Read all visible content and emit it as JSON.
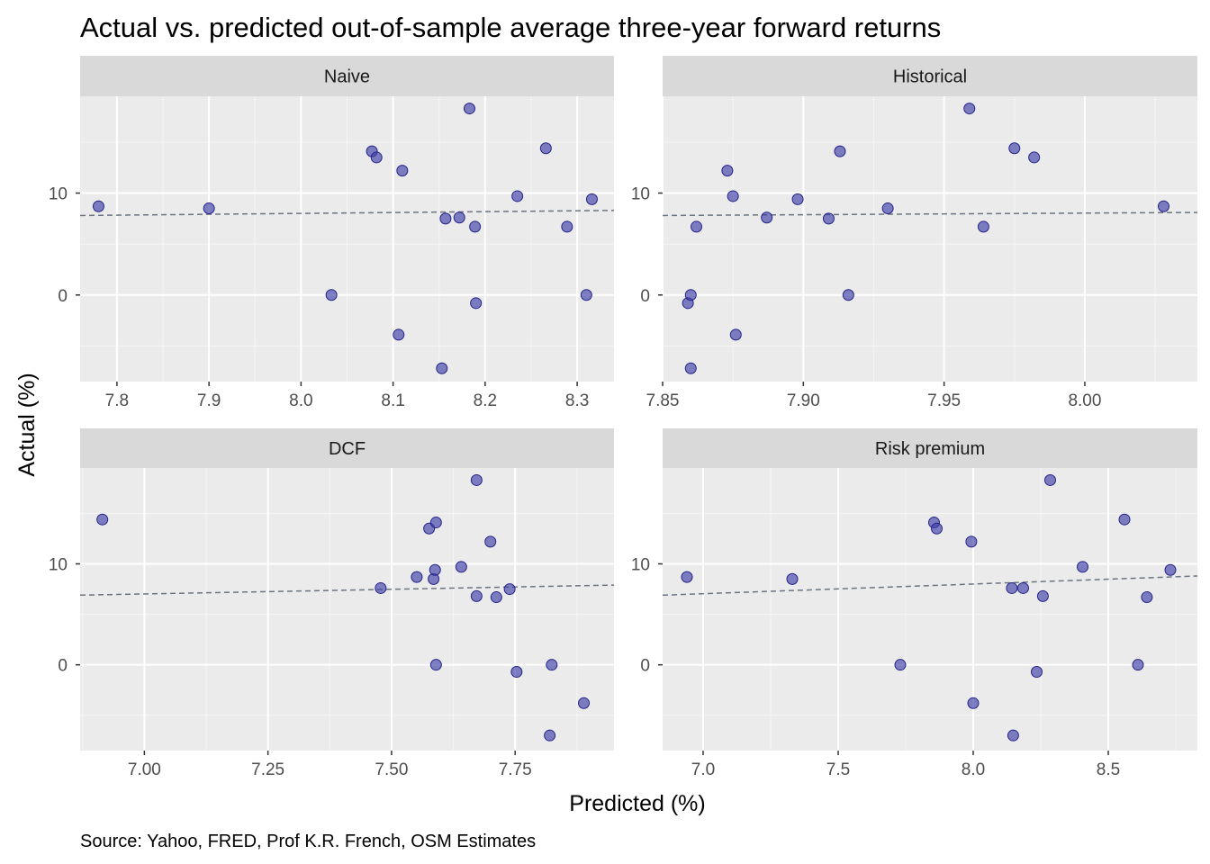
{
  "chart_data": {
    "type": "scatter",
    "title": "Actual vs. predicted out-of-sample average three-year forward returns",
    "xlabel": "Predicted (%)",
    "ylabel": "Actual (%)",
    "caption": "Source: Yahoo, FRED, Prof K.R. French, OSM Estimates",
    "grid": true,
    "point_color": "#3f3fa8",
    "trend_color": "#6b7480",
    "panels": [
      {
        "name": "Naive",
        "xlim": [
          7.76,
          8.34
        ],
        "ylim": [
          -8.5,
          19.5
        ],
        "x_ticks": [
          7.8,
          7.9,
          8.0,
          8.1,
          8.2,
          8.3
        ],
        "x_tick_labels": [
          "7.8",
          "7.9",
          "8.0",
          "8.1",
          "8.2",
          "8.3"
        ],
        "y_ticks": [
          0,
          10
        ],
        "y_tick_labels": [
          "0",
          "10"
        ],
        "trend": [
          [
            7.76,
            7.8
          ],
          [
            8.34,
            8.3
          ]
        ],
        "points": [
          {
            "x": 7.78,
            "y": 8.7
          },
          {
            "x": 7.9,
            "y": 8.5
          },
          {
            "x": 8.033,
            "y": 0.0
          },
          {
            "x": 8.077,
            "y": 14.1
          },
          {
            "x": 8.082,
            "y": 13.5
          },
          {
            "x": 8.106,
            "y": -3.9
          },
          {
            "x": 8.11,
            "y": 12.2
          },
          {
            "x": 8.153,
            "y": -7.2
          },
          {
            "x": 8.157,
            "y": 7.5
          },
          {
            "x": 8.172,
            "y": 7.6
          },
          {
            "x": 8.183,
            "y": 18.3
          },
          {
            "x": 8.189,
            "y": 6.7
          },
          {
            "x": 8.19,
            "y": -0.8
          },
          {
            "x": 8.235,
            "y": 9.7
          },
          {
            "x": 8.266,
            "y": 14.4
          },
          {
            "x": 8.289,
            "y": 6.7
          },
          {
            "x": 8.31,
            "y": 0.0
          },
          {
            "x": 8.316,
            "y": 9.4
          }
        ]
      },
      {
        "name": "Historical",
        "xlim": [
          7.85,
          8.04
        ],
        "ylim": [
          -8.5,
          19.5
        ],
        "x_ticks": [
          7.85,
          7.9,
          7.95,
          8.0
        ],
        "x_tick_labels": [
          "7.85",
          "7.90",
          "7.95",
          "8.00"
        ],
        "y_ticks": [
          0,
          10
        ],
        "y_tick_labels": [
          "0",
          "10"
        ],
        "trend": [
          [
            7.85,
            7.8
          ],
          [
            8.04,
            8.1
          ]
        ],
        "points": [
          {
            "x": 7.859,
            "y": -0.8
          },
          {
            "x": 7.86,
            "y": 0.0
          },
          {
            "x": 7.86,
            "y": -7.2
          },
          {
            "x": 7.862,
            "y": 6.7
          },
          {
            "x": 7.873,
            "y": 12.2
          },
          {
            "x": 7.875,
            "y": 9.7
          },
          {
            "x": 7.876,
            "y": -3.9
          },
          {
            "x": 7.887,
            "y": 7.6
          },
          {
            "x": 7.898,
            "y": 9.4
          },
          {
            "x": 7.909,
            "y": 7.5
          },
          {
            "x": 7.913,
            "y": 14.1
          },
          {
            "x": 7.916,
            "y": 0.0
          },
          {
            "x": 7.93,
            "y": 8.5
          },
          {
            "x": 7.959,
            "y": 18.3
          },
          {
            "x": 7.964,
            "y": 6.7
          },
          {
            "x": 7.975,
            "y": 14.4
          },
          {
            "x": 7.982,
            "y": 13.5
          },
          {
            "x": 8.028,
            "y": 8.7
          }
        ]
      },
      {
        "name": "DCF",
        "xlim": [
          6.87,
          7.95
        ],
        "ylim": [
          -8.5,
          19.5
        ],
        "x_ticks": [
          7.0,
          7.25,
          7.5,
          7.75
        ],
        "x_tick_labels": [
          "7.00",
          "7.25",
          "7.50",
          "7.75"
        ],
        "y_ticks": [
          0,
          10
        ],
        "y_tick_labels": [
          "0",
          "10"
        ],
        "trend": [
          [
            6.87,
            6.9
          ],
          [
            7.95,
            7.9
          ]
        ],
        "points": [
          {
            "x": 6.915,
            "y": 14.4
          },
          {
            "x": 7.478,
            "y": 7.6
          },
          {
            "x": 7.551,
            "y": 8.7
          },
          {
            "x": 7.576,
            "y": 13.5
          },
          {
            "x": 7.585,
            "y": 8.5
          },
          {
            "x": 7.588,
            "y": 9.4
          },
          {
            "x": 7.59,
            "y": 14.1
          },
          {
            "x": 7.59,
            "y": 0.0
          },
          {
            "x": 7.641,
            "y": 9.7
          },
          {
            "x": 7.672,
            "y": 18.3
          },
          {
            "x": 7.672,
            "y": 6.8
          },
          {
            "x": 7.7,
            "y": 12.2
          },
          {
            "x": 7.712,
            "y": 6.7
          },
          {
            "x": 7.739,
            "y": 7.5
          },
          {
            "x": 7.753,
            "y": -0.7
          },
          {
            "x": 7.82,
            "y": -7.0
          },
          {
            "x": 7.824,
            "y": 0.0
          },
          {
            "x": 7.889,
            "y": -3.8
          }
        ]
      },
      {
        "name": "Risk premium",
        "xlim": [
          6.85,
          8.83
        ],
        "ylim": [
          -8.5,
          19.5
        ],
        "x_ticks": [
          7.0,
          7.5,
          8.0,
          8.5
        ],
        "x_tick_labels": [
          "7.0",
          "7.5",
          "8.0",
          "8.5"
        ],
        "y_ticks": [
          0,
          10
        ],
        "y_tick_labels": [
          "0",
          "10"
        ],
        "trend": [
          [
            6.85,
            6.9
          ],
          [
            8.83,
            8.8
          ]
        ],
        "points": [
          {
            "x": 6.94,
            "y": 8.7
          },
          {
            "x": 7.33,
            "y": 8.5
          },
          {
            "x": 7.73,
            "y": 0.0
          },
          {
            "x": 7.855,
            "y": 14.1
          },
          {
            "x": 7.865,
            "y": 13.5
          },
          {
            "x": 7.993,
            "y": 12.2
          },
          {
            "x": 8.0,
            "y": -3.8
          },
          {
            "x": 8.143,
            "y": 7.6
          },
          {
            "x": 8.148,
            "y": -7.0
          },
          {
            "x": 8.185,
            "y": 7.6
          },
          {
            "x": 8.235,
            "y": -0.7
          },
          {
            "x": 8.258,
            "y": 6.8
          },
          {
            "x": 8.285,
            "y": 18.3
          },
          {
            "x": 8.405,
            "y": 9.7
          },
          {
            "x": 8.56,
            "y": 14.4
          },
          {
            "x": 8.61,
            "y": 0.0
          },
          {
            "x": 8.643,
            "y": 6.7
          },
          {
            "x": 8.73,
            "y": 9.4
          }
        ]
      }
    ]
  }
}
